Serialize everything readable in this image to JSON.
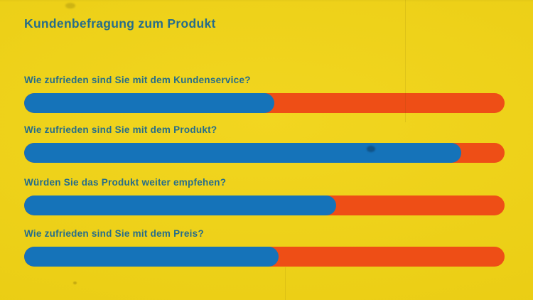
{
  "page": {
    "title": "Kundenbefragung zum Produkt"
  },
  "colors": {
    "background": "#f1d312",
    "text": "#266d8a",
    "bar_fill": "#1573b9",
    "bar_track": "#ee4e16"
  },
  "survey": {
    "items": [
      {
        "question": "Wie zufrieden sind Sie mit dem Kundenservice?",
        "fill_percent": 52
      },
      {
        "question": "Wie zufrieden sind Sie mit dem Produkt?",
        "fill_percent": 91
      },
      {
        "question": "Würden Sie das Produkt weiter empfehen?",
        "fill_percent": 65
      },
      {
        "question": "Wie zufrieden sind Sie mit dem Preis?",
        "fill_percent": 53
      }
    ]
  },
  "chart_data": {
    "type": "bar",
    "orientation": "horizontal",
    "title": "Kundenbefragung zum Produkt",
    "categories": [
      "Wie zufrieden sind Sie mit dem Kundenservice?",
      "Wie zufrieden sind Sie mit dem Produkt?",
      "Würden Sie das Produkt weiter empfehen?",
      "Wie zufrieden sind Sie mit dem Preis?"
    ],
    "values": [
      52,
      91,
      65,
      53
    ],
    "value_meaning": "blue filled share of each progress bar, percent",
    "xlim": [
      0,
      100
    ],
    "grid": false,
    "legend_position": "none",
    "bar_fill_color": "#1573b9",
    "bar_track_color": "#ee4e16"
  }
}
